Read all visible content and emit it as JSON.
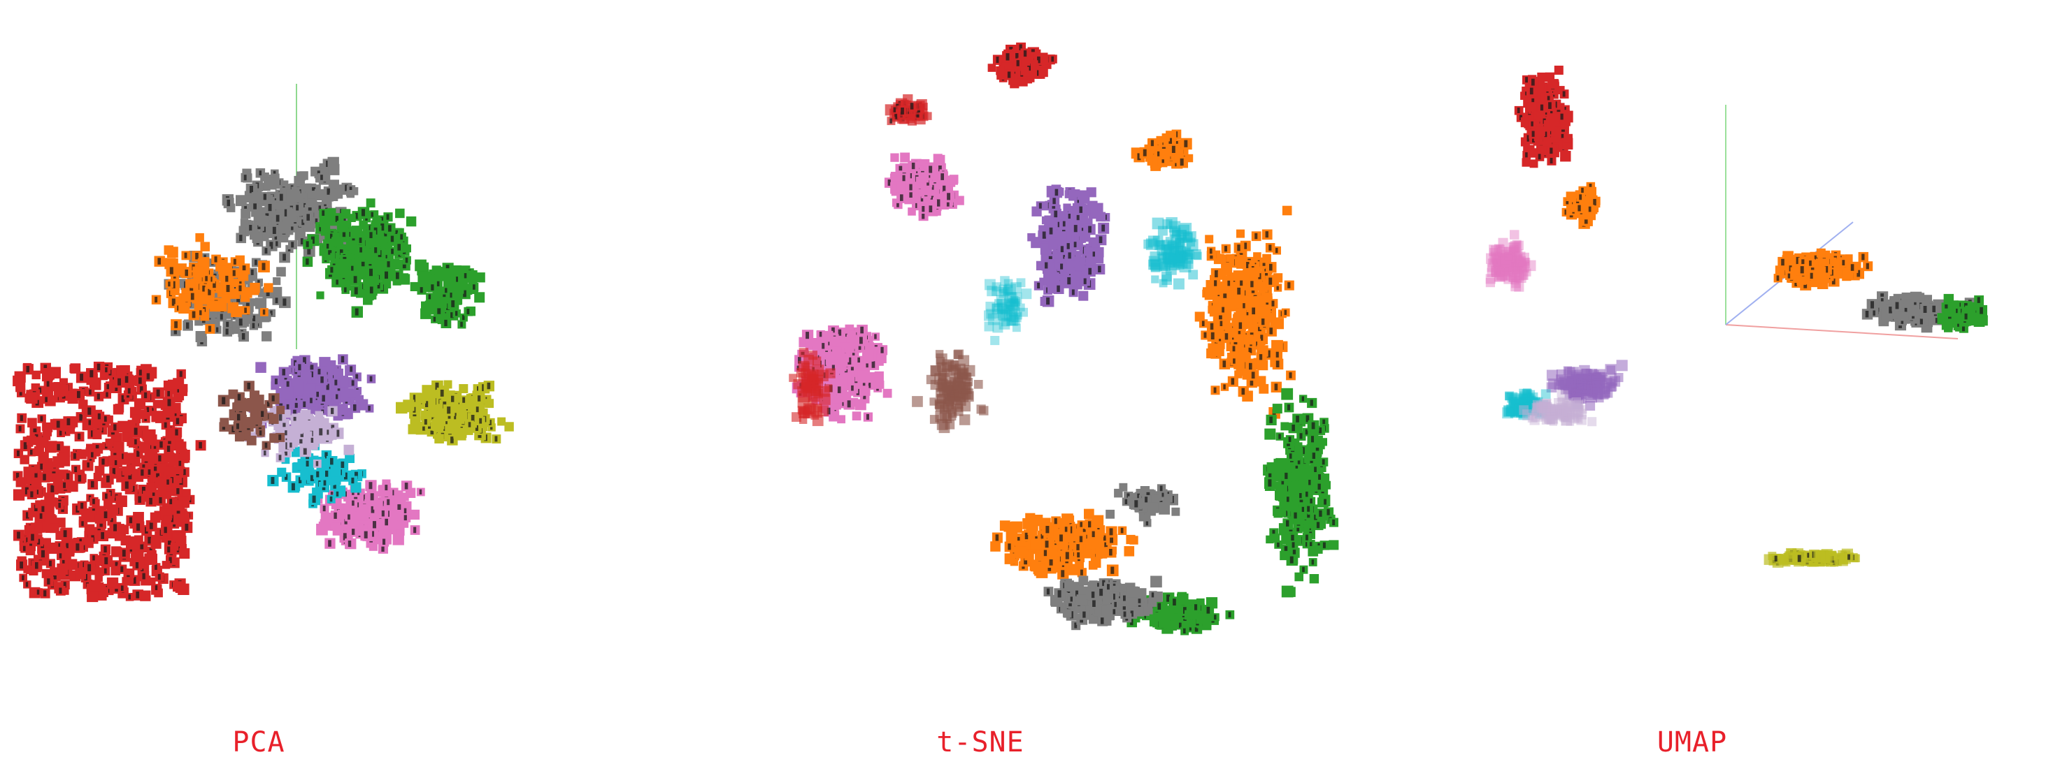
{
  "panels": [
    {
      "id": "pca",
      "caption": "PCA"
    },
    {
      "id": "tsne",
      "caption": "t-SNE"
    },
    {
      "id": "umap",
      "caption": "UMAP"
    }
  ],
  "caption_color": "#e8202a",
  "class_colors": {
    "0": "#bcbd22",
    "1": "#d62728",
    "2": "#e377c2",
    "3": "#17becf",
    "4": "#2ca02c",
    "5": "#8c564b",
    "6": "#9467bd",
    "7": "#ff7f0e",
    "8": "#c5b0d5",
    "9": "#7f7f7f"
  },
  "axis_colors": {
    "x": "#e04040",
    "y": "#40c040",
    "z": "#4060e0"
  }
}
